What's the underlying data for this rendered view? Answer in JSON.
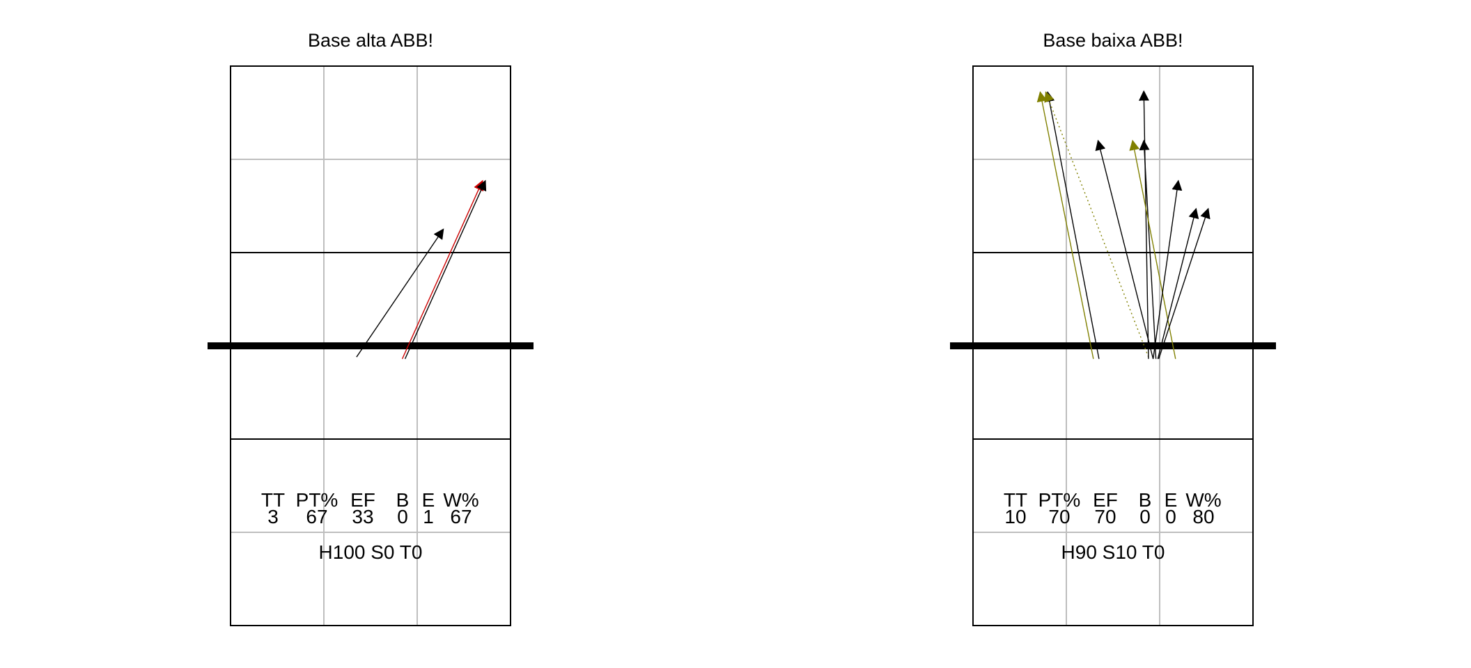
{
  "chart_data": [
    {
      "type": "arrow-court",
      "title": "Base alta ABB!",
      "court": {
        "columns": 3,
        "rows": 6,
        "net_row": 3
      },
      "stats": {
        "headers": [
          "TT",
          "PT%",
          "EF",
          "B",
          "E",
          "W%"
        ],
        "values": [
          "3",
          "67",
          "33",
          "0",
          "1",
          "67"
        ]
      },
      "summary": "H100 S0 T0",
      "arrows": [
        {
          "from": [
            1.35,
            3.12
          ],
          "to": [
            2.28,
            1.75
          ],
          "color": "#000000",
          "dashed": false
        },
        {
          "from": [
            1.84,
            3.14
          ],
          "to": [
            2.7,
            1.23
          ],
          "color": "#cc0000",
          "dashed": false
        },
        {
          "from": [
            1.87,
            3.14
          ],
          "to": [
            2.73,
            1.23
          ],
          "color": "#000000",
          "dashed": false
        }
      ]
    },
    {
      "type": "arrow-court",
      "title": "Base baixa ABB!",
      "court": {
        "columns": 3,
        "rows": 6,
        "net_row": 3
      },
      "stats": {
        "headers": [
          "TT",
          "PT%",
          "EF",
          "B",
          "E",
          "W%"
        ],
        "values": [
          "10",
          "70",
          "70",
          "0",
          "0",
          "80"
        ]
      },
      "summary": "H90 S10 T0",
      "arrows": [
        {
          "from": [
            1.29,
            3.14
          ],
          "to": [
            0.72,
            0.28
          ],
          "color": "#808000",
          "dashed": false
        },
        {
          "from": [
            1.35,
            3.14
          ],
          "to": [
            0.8,
            0.28
          ],
          "color": "#000000",
          "dashed": false
        },
        {
          "from": [
            1.88,
            3.12
          ],
          "to": [
            0.78,
            0.28
          ],
          "color": "#808000",
          "dashed": true
        },
        {
          "from": [
            1.93,
            3.14
          ],
          "to": [
            1.34,
            0.8
          ],
          "color": "#000000",
          "dashed": false
        },
        {
          "from": [
            1.88,
            3.14
          ],
          "to": [
            1.83,
            0.27
          ],
          "color": "#000000",
          "dashed": false
        },
        {
          "from": [
            1.96,
            3.14
          ],
          "to": [
            1.83,
            0.8
          ],
          "color": "#000000",
          "dashed": false
        },
        {
          "from": [
            2.17,
            3.14
          ],
          "to": [
            1.71,
            0.8
          ],
          "color": "#808000",
          "dashed": false
        },
        {
          "from": [
            1.93,
            3.14
          ],
          "to": [
            2.2,
            1.23
          ],
          "color": "#000000",
          "dashed": false
        },
        {
          "from": [
            1.98,
            3.14
          ],
          "to": [
            2.39,
            1.53
          ],
          "color": "#000000",
          "dashed": false
        },
        {
          "from": [
            1.99,
            3.14
          ],
          "to": [
            2.52,
            1.53
          ],
          "color": "#000000",
          "dashed": false
        }
      ]
    }
  ]
}
